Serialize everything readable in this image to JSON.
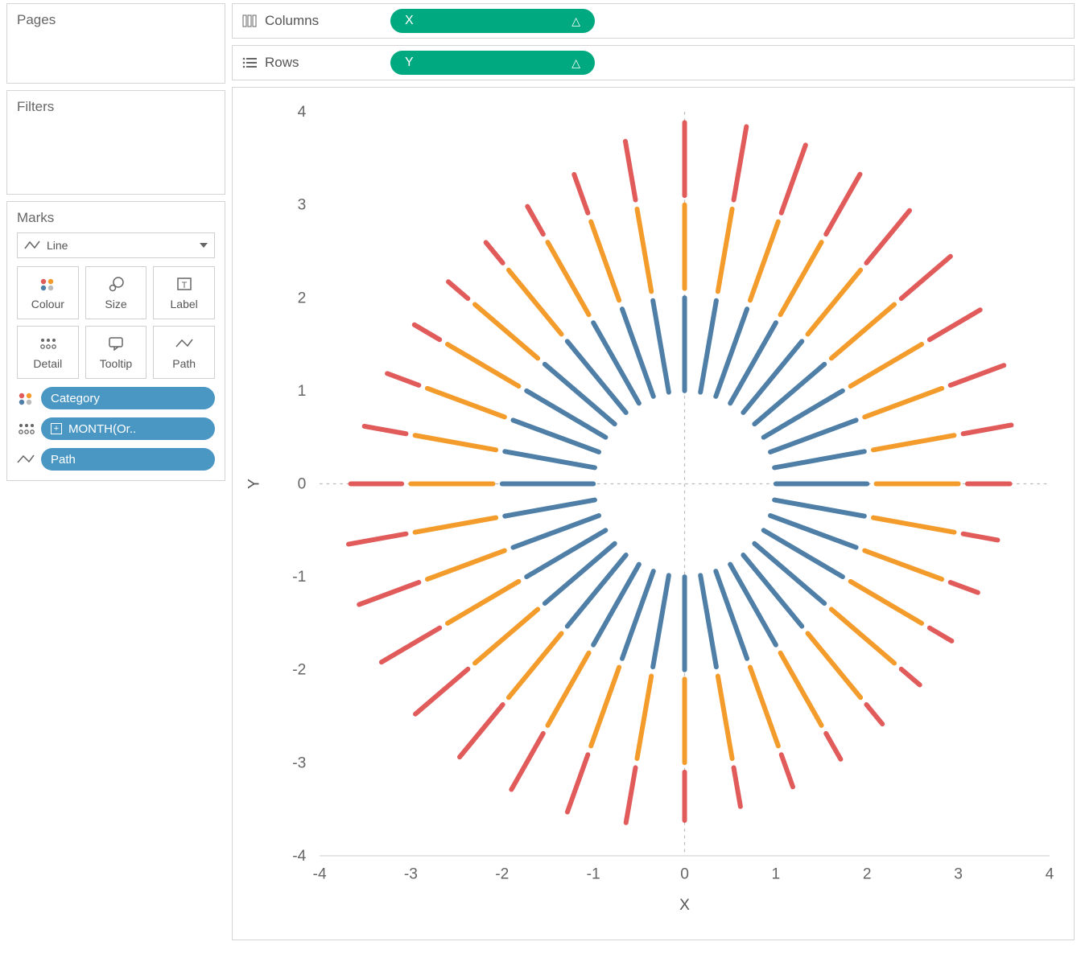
{
  "shelves": {
    "pages_title": "Pages",
    "filters_title": "Filters",
    "marks_title": "Marks",
    "columns_label": "Columns",
    "rows_label": "Rows",
    "columns_pill": "X",
    "rows_pill": "Y",
    "shelf_pill_color": "#00a97f",
    "delta_glyph": "△"
  },
  "marks": {
    "type_label": "Line",
    "buttons": [
      {
        "key": "colour",
        "label": "Colour"
      },
      {
        "key": "size",
        "label": "Size"
      },
      {
        "key": "label",
        "label": "Label"
      },
      {
        "key": "detail",
        "label": "Detail"
      },
      {
        "key": "tooltip",
        "label": "Tooltip"
      },
      {
        "key": "path",
        "label": "Path"
      }
    ],
    "pills": [
      {
        "icon": "colour",
        "label": "Category",
        "has_plus": false
      },
      {
        "icon": "detail",
        "label": "MONTH(Or..",
        "has_plus": true
      },
      {
        "icon": "path",
        "label": "Path",
        "has_plus": false
      }
    ],
    "pill_color": "#4b97c3"
  },
  "chart": {
    "type": "radial-lines",
    "x_axis_title": "X",
    "y_axis_title": "Y",
    "xlim": [
      -4,
      4
    ],
    "ylim": [
      -4,
      4
    ],
    "xticks": [
      -4,
      -3,
      -2,
      -1,
      0,
      1,
      2,
      3,
      4
    ],
    "yticks": [
      -4,
      -3,
      -2,
      -1,
      0,
      1,
      2,
      3,
      4
    ],
    "tick_fontsize": 16,
    "background_color": "#ffffff",
    "grid_color": "#bbbbbb",
    "zero_grid": true,
    "stroke_width": 5,
    "stroke_linecap": "round",
    "num_spokes": 36,
    "rings": [
      {
        "name": "inner",
        "color": "#4f7fa7",
        "r0": 1.0,
        "r1": 2.0
      },
      {
        "name": "middle",
        "color": "#f39c2c",
        "r0": 2.1,
        "r1": 3.0
      },
      {
        "name": "outer",
        "color": "#e15b5b",
        "r0": 3.1,
        "r1": 3.9
      }
    ],
    "outer_scale": [
      0.98,
      1.0,
      0.97,
      0.93,
      0.92,
      0.88,
      0.8,
      0.78,
      0.67,
      0.58,
      0.48,
      0.4,
      0.35,
      0.33,
      0.34,
      0.4,
      0.46,
      0.53,
      0.65,
      0.75,
      0.82,
      0.87,
      0.92,
      0.94,
      0.92,
      0.87,
      0.8,
      0.7,
      0.58,
      0.46,
      0.4,
      0.35,
      0.36,
      0.43,
      0.55,
      0.8
    ],
    "ring_outer_base": 3.1,
    "ring_outer_span": 0.8
  }
}
